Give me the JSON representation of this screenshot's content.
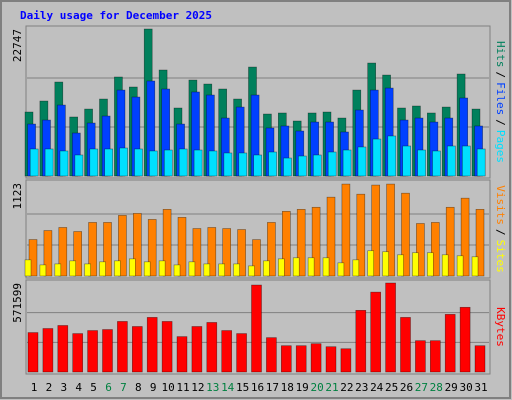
{
  "chart_data": [
    {
      "type": "bar",
      "title": "Daily usage for December 2025",
      "legend_separator": "/",
      "ylim": [
        0,
        22747
      ],
      "yticks": [
        22747
      ],
      "series": [
        {
          "name": "Pages",
          "color": "#00e0ff",
          "values": [
            4180,
            4180,
            3870,
            3250,
            4180,
            4180,
            4330,
            4180,
            3870,
            4020,
            4180,
            4020,
            3870,
            3560,
            3560,
            3250,
            3710,
            2780,
            3090,
            3250,
            3710,
            4020,
            4490,
            5720,
            6190,
            4640,
            4020,
            3870,
            4640,
            4640,
            4180
          ]
        },
        {
          "name": "Files",
          "color": "#0040ff",
          "values": [
            8040,
            8660,
            10980,
            6650,
            8200,
            9280,
            13300,
            12220,
            14700,
            13460,
            8040,
            13000,
            12530,
            8970,
            10670,
            12530,
            7430,
            7740,
            6960,
            8350,
            8350,
            6810,
            10210,
            13300,
            13610,
            8660,
            8970,
            8350,
            8970,
            12070,
            7740
          ]
        },
        {
          "name": "Hits",
          "color": "#00805c",
          "values": [
            9900,
            11600,
            14540,
            9130,
            10360,
            11910,
            15320,
            13770,
            22747,
            16400,
            10520,
            14850,
            14230,
            13460,
            11910,
            16860,
            9590,
            9750,
            8510,
            9750,
            9900,
            8970,
            13300,
            17480,
            15620,
            10520,
            10830,
            9750,
            10670,
            15780,
            10360
          ]
        }
      ]
    },
    {
      "type": "bar",
      "legend_separator": "/",
      "ylim": [
        0,
        1123
      ],
      "yticks": [
        1123
      ],
      "series": [
        {
          "name": "Sites",
          "color": "#ffff00",
          "values": [
            195,
            134,
            146,
            183,
            146,
            171,
            183,
            207,
            171,
            183,
            134,
            171,
            146,
            146,
            146,
            122,
            183,
            207,
            220,
            220,
            220,
            159,
            195,
            305,
            293,
            256,
            281,
            281,
            256,
            244,
            232
          ]
        },
        {
          "name": "Visits",
          "color": "#ff8000",
          "values": [
            440,
            549,
            586,
            537,
            647,
            647,
            732,
            756,
            683,
            805,
            708,
            573,
            586,
            573,
            561,
            439,
            647,
            781,
            805,
            830,
            952,
            1110,
            988,
            1098,
            1110,
            1000,
            634,
            647,
            830,
            940,
            805
          ]
        }
      ]
    },
    {
      "type": "bar",
      "ylim": [
        0,
        571599
      ],
      "yticks": [
        571599
      ],
      "categories": [
        1,
        2,
        3,
        4,
        5,
        6,
        7,
        8,
        9,
        10,
        11,
        12,
        13,
        14,
        15,
        16,
        17,
        18,
        19,
        20,
        21,
        22,
        23,
        24,
        25,
        26,
        27,
        28,
        29,
        30,
        31
      ],
      "weekend_categories": [
        6,
        7,
        13,
        14,
        20,
        21,
        27,
        28
      ],
      "weekend_color": "#008040",
      "series": [
        {
          "name": "KBytes",
          "color": "#ff0000",
          "values": [
            253300,
            279300,
            298800,
            246800,
            266300,
            272800,
            324800,
            292300,
            350700,
            324800,
            227300,
            292300,
            318300,
            266300,
            246800,
            558600,
            220800,
            168900,
            168900,
            181900,
            162400,
            149400,
            396200,
            513100,
            571599,
            350700,
            201300,
            201300,
            370200,
            415700,
            168900
          ]
        }
      ]
    }
  ]
}
